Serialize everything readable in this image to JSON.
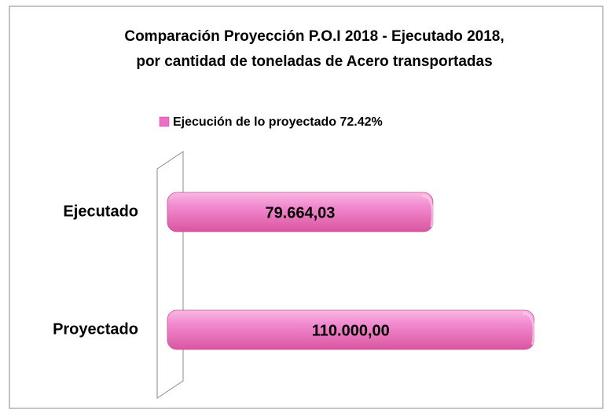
{
  "chart_data": {
    "type": "bar",
    "orientation": "horizontal",
    "title": [
      "Comparación Proyección P.O.I 2018 -  Ejecutado 2018,",
      "por cantidad de toneladas de Acero transportadas"
    ],
    "categories": [
      "Ejecutado",
      "Proyectado"
    ],
    "series": [
      {
        "name": "Ejecución de lo proyectado 72.42%",
        "color": "#f06ec4",
        "values": [
          79664.03,
          110000
        ],
        "value_labels": [
          "79.664,03",
          "110.000,00"
        ]
      }
    ],
    "xlim": [
      0,
      120000
    ],
    "legend": "top"
  }
}
